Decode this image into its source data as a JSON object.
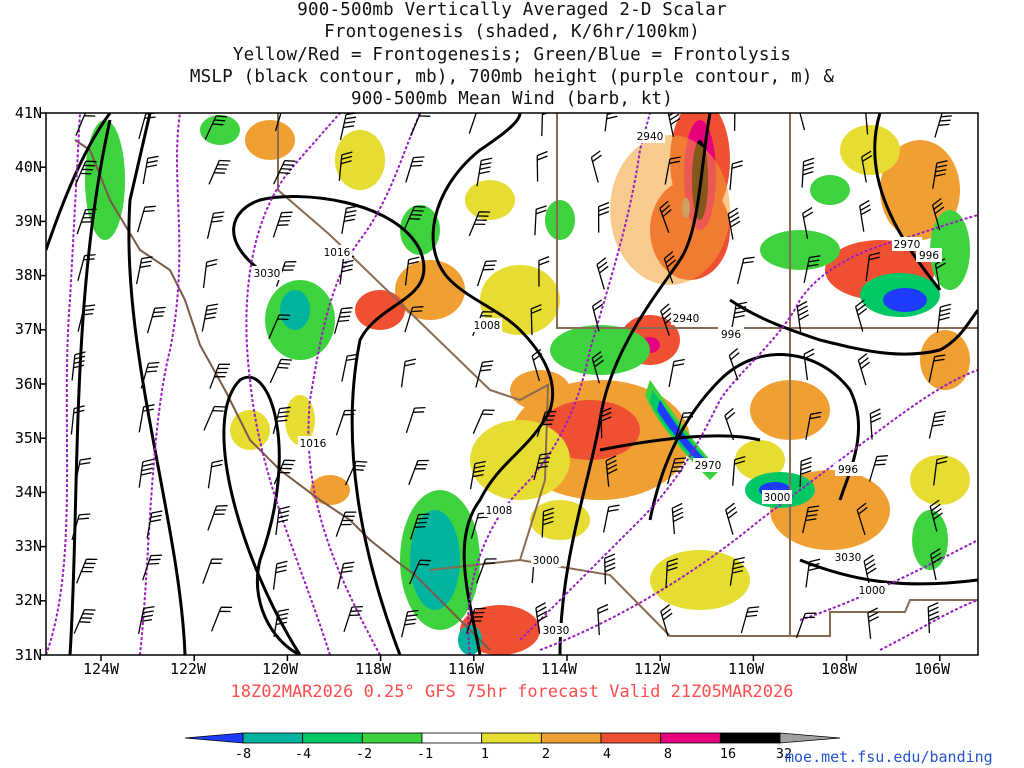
{
  "title_lines": [
    "900-500mb Vertically Averaged 2-D Scalar",
    "Frontogenesis (shaded, K/6hr/100km)",
    "Yellow/Red = Frontogenesis;  Green/Blue = Frontolysis",
    "MSLP (black contour, mb), 700mb height (purple contour, m) &",
    "900-500mb Mean Wind (barb, kt)"
  ],
  "lat_labels": [
    "41N",
    "40N",
    "39N",
    "38N",
    "37N",
    "36N",
    "35N",
    "34N",
    "33N",
    "32N",
    "31N"
  ],
  "lon_labels": [
    "124W",
    "122W",
    "120W",
    "118W",
    "116W",
    "114W",
    "112W",
    "110W",
    "108W",
    "106W"
  ],
  "valid_line": "18Z02MAR2026 0.25° GFS 75hr forecast Valid 21Z05MAR2026",
  "colorbar": {
    "labels": [
      "-8",
      "-4",
      "-2",
      "-1",
      "1",
      "2",
      "4",
      "8",
      "16",
      "32"
    ],
    "colors": [
      "#1e3cff",
      "#00b4a0",
      "#00c864",
      "#3ed23e",
      "#ffffff",
      "#e6dc32",
      "#f0a032",
      "#f05032",
      "#e6007e",
      "#000000",
      "#a0a0a0"
    ]
  },
  "contour_labels": {
    "mslp": [
      "1016",
      "1016",
      "1008",
      "1008",
      "996",
      "996",
      "996",
      "1000"
    ],
    "height": [
      "2940",
      "2940",
      "2970",
      "2970",
      "3030",
      "3000",
      "3000",
      "3030",
      "3030"
    ]
  },
  "credit": "moe.met.fsu.edu/banding"
}
